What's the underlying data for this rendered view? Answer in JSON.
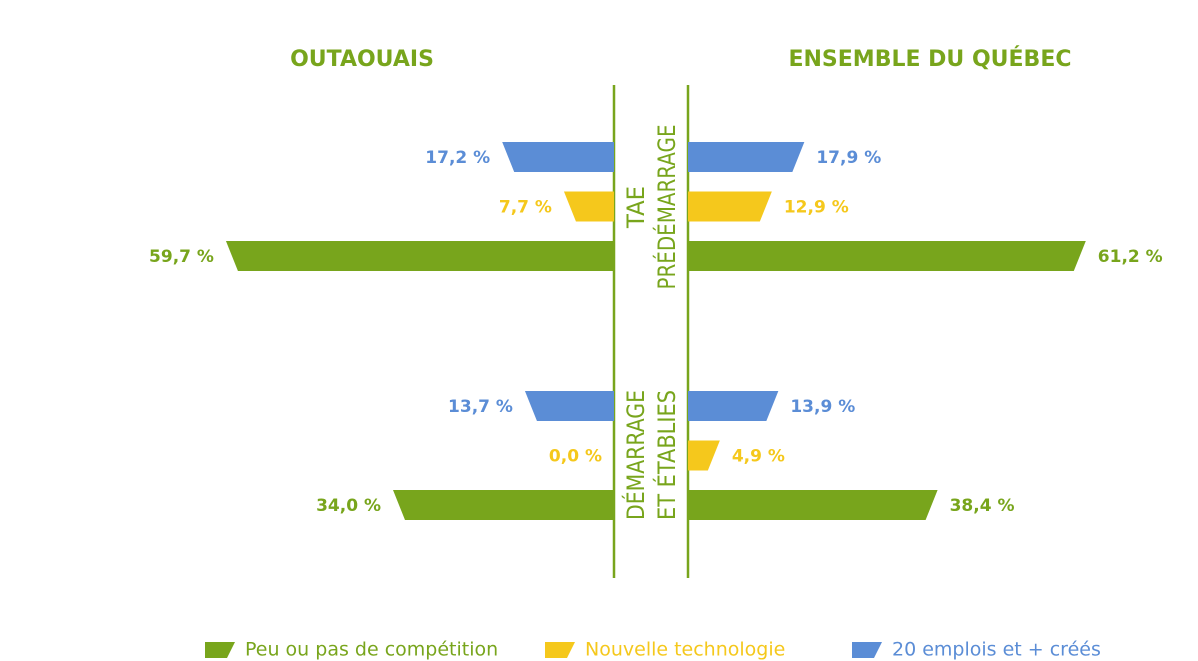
{
  "chart_data": {
    "type": "butterfly",
    "sides": [
      "OUTAOUAIS",
      "ENSEMBLE DU QUÉBEC"
    ],
    "groups": [
      {
        "label_lines": [
          "TAE",
          "PRÉDÉMARRAGE"
        ]
      },
      {
        "label_lines": [
          "DÉMARRAGE",
          "ET ÉTABLIES"
        ]
      }
    ],
    "series": [
      {
        "name": "Peu ou pas de compétition",
        "color": "#78a51c",
        "left": [
          59.7,
          34.0
        ],
        "left_labels": [
          "59,7 %",
          "34,0 %"
        ],
        "right": [
          61.2,
          38.4
        ],
        "right_labels": [
          "61,2 %",
          "38,4 %"
        ]
      },
      {
        "name": "Nouvelle technologie",
        "color": "#f5c81c",
        "left": [
          7.7,
          0.0
        ],
        "left_labels": [
          "7,7 %",
          "0,0 %"
        ],
        "right": [
          12.9,
          4.9
        ],
        "right_labels": [
          "12,9 %",
          "4,9 %"
        ]
      },
      {
        "name": "20 emplois et + créés",
        "color": "#5b8dd6",
        "left": [
          17.2,
          13.7
        ],
        "left_labels": [
          "17,2 %",
          "13,7 %"
        ],
        "right": [
          17.9,
          13.9
        ],
        "right_labels": [
          "17,9 %",
          "13,9 %"
        ]
      }
    ]
  }
}
